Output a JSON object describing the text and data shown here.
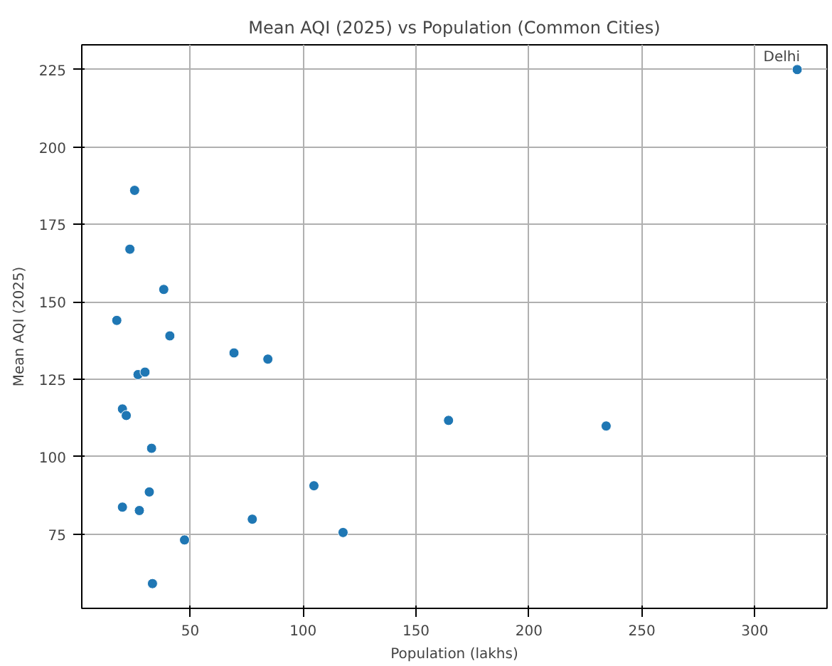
{
  "chart_data": {
    "type": "scatter",
    "title": "Mean AQI (2025) vs Population (Common Cities)",
    "xlabel": "Population (lakhs)",
    "ylabel": "Mean AQI (2025)",
    "x": [
      25.4,
      23.3,
      38.3,
      17.5,
      41.0,
      69.4,
      84.4,
      26.9,
      30.0,
      20.0,
      21.7,
      32.9,
      31.9,
      20.0,
      27.5,
      47.5,
      33.3,
      77.5,
      104.8,
      117.7,
      164.4,
      234.2,
      318.8
    ],
    "values": [
      186,
      167,
      154,
      144,
      139,
      133.5,
      131.5,
      126.5,
      127.3,
      115.4,
      113.3,
      102.7,
      88.6,
      83.7,
      82.6,
      73.1,
      59,
      79.8,
      90.6,
      75.5,
      111.7,
      109.9,
      225
    ],
    "color": "#1f77b4",
    "marker": "circle",
    "xlim": [
      2,
      332
    ],
    "ylim": [
      51,
      233
    ],
    "xticks": [
      50,
      100,
      150,
      200,
      250,
      300
    ],
    "yticks": [
      75,
      100,
      125,
      150,
      175,
      200,
      225
    ],
    "grid": true,
    "annotations": [
      {
        "text": "Delhi",
        "x": 318.8,
        "y": 225
      }
    ]
  }
}
